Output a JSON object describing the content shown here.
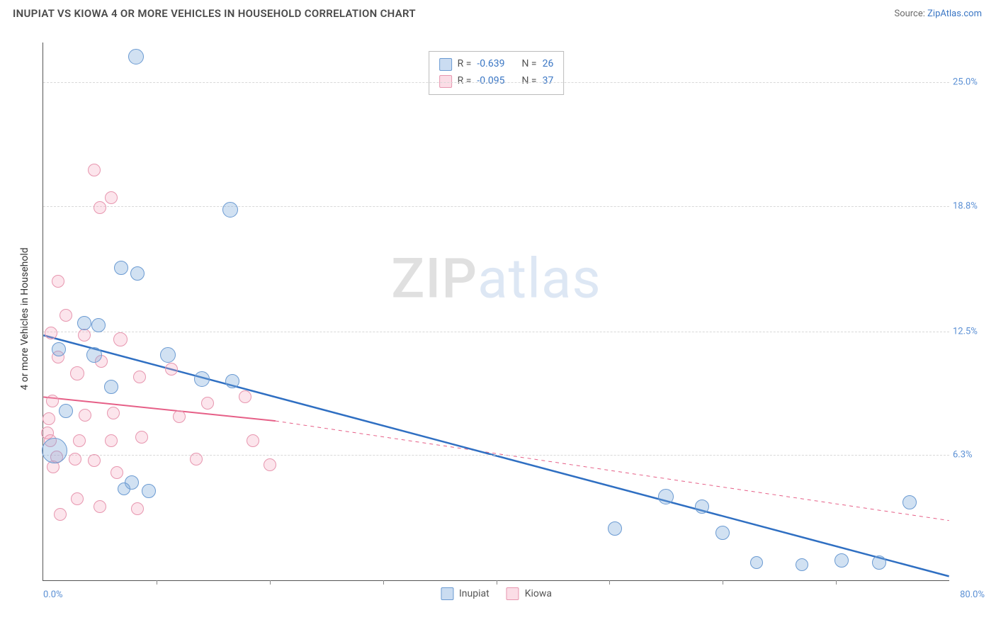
{
  "header": {
    "title": "INUPIAT VS KIOWA 4 OR MORE VEHICLES IN HOUSEHOLD CORRELATION CHART",
    "source_prefix": "Source: ",
    "source_link": "ZipAtlas.com"
  },
  "axes": {
    "y_label": "4 or more Vehicles in Household",
    "x_min": 0,
    "x_max": 80,
    "y_min": 0,
    "y_max": 27,
    "x_min_label": "0.0%",
    "x_max_label": "80.0%",
    "y_ticks": [
      {
        "v": 6.3,
        "label": "6.3%"
      },
      {
        "v": 12.5,
        "label": "12.5%"
      },
      {
        "v": 18.8,
        "label": "18.8%"
      },
      {
        "v": 25.0,
        "label": "25.0%"
      }
    ],
    "x_tick_vals": [
      10,
      20,
      30,
      40,
      50,
      60,
      70
    ]
  },
  "legend_stats": {
    "rows": [
      {
        "swatch": "sw-blue",
        "r_label": "R =",
        "r": "-0.639",
        "n_label": "N =",
        "n": "26"
      },
      {
        "swatch": "sw-pink",
        "r_label": "R =",
        "r": "-0.095",
        "n_label": "N =",
        "n": "37"
      }
    ]
  },
  "bottom_legend": [
    {
      "swatch": "sw-blue",
      "label": "Inupiat"
    },
    {
      "swatch": "sw-pink",
      "label": "Kiowa"
    }
  ],
  "watermark": {
    "zip": "ZIP",
    "atlas": "atlas"
  },
  "points": {
    "blue": [
      {
        "x": 8.2,
        "y": 26.3,
        "r": 11
      },
      {
        "x": 16.5,
        "y": 18.6,
        "r": 11
      },
      {
        "x": 6.9,
        "y": 15.7,
        "r": 10
      },
      {
        "x": 8.3,
        "y": 15.4,
        "r": 10
      },
      {
        "x": 3.6,
        "y": 12.9,
        "r": 10
      },
      {
        "x": 4.9,
        "y": 12.8,
        "r": 10
      },
      {
        "x": 1.4,
        "y": 11.6,
        "r": 10
      },
      {
        "x": 4.5,
        "y": 11.3,
        "r": 11
      },
      {
        "x": 11.0,
        "y": 11.3,
        "r": 11
      },
      {
        "x": 14.0,
        "y": 10.1,
        "r": 11
      },
      {
        "x": 16.7,
        "y": 10.0,
        "r": 10
      },
      {
        "x": 6.0,
        "y": 9.7,
        "r": 10
      },
      {
        "x": 2.0,
        "y": 8.5,
        "r": 10
      },
      {
        "x": 1.0,
        "y": 6.5,
        "r": 18
      },
      {
        "x": 7.8,
        "y": 4.9,
        "r": 10
      },
      {
        "x": 9.3,
        "y": 4.5,
        "r": 10
      },
      {
        "x": 7.1,
        "y": 4.6,
        "r": 9
      },
      {
        "x": 55.0,
        "y": 4.2,
        "r": 11
      },
      {
        "x": 58.2,
        "y": 3.7,
        "r": 10
      },
      {
        "x": 60.0,
        "y": 2.4,
        "r": 10
      },
      {
        "x": 50.5,
        "y": 2.6,
        "r": 10
      },
      {
        "x": 70.5,
        "y": 1.0,
        "r": 10
      },
      {
        "x": 73.8,
        "y": 0.9,
        "r": 10
      },
      {
        "x": 76.5,
        "y": 3.9,
        "r": 10
      },
      {
        "x": 63.0,
        "y": 0.9,
        "r": 9
      },
      {
        "x": 67.0,
        "y": 0.8,
        "r": 9
      }
    ],
    "pink": [
      {
        "x": 4.5,
        "y": 20.6,
        "r": 9
      },
      {
        "x": 6.0,
        "y": 19.2,
        "r": 9
      },
      {
        "x": 5.0,
        "y": 18.7,
        "r": 9
      },
      {
        "x": 1.3,
        "y": 15.0,
        "r": 9
      },
      {
        "x": 2.0,
        "y": 13.3,
        "r": 9
      },
      {
        "x": 0.7,
        "y": 12.4,
        "r": 9
      },
      {
        "x": 3.6,
        "y": 12.3,
        "r": 9
      },
      {
        "x": 6.8,
        "y": 12.1,
        "r": 10
      },
      {
        "x": 1.3,
        "y": 11.2,
        "r": 9
      },
      {
        "x": 5.1,
        "y": 11.0,
        "r": 9
      },
      {
        "x": 3.0,
        "y": 10.4,
        "r": 10
      },
      {
        "x": 8.5,
        "y": 10.2,
        "r": 9
      },
      {
        "x": 11.3,
        "y": 10.6,
        "r": 9
      },
      {
        "x": 0.8,
        "y": 9.0,
        "r": 9
      },
      {
        "x": 0.5,
        "y": 8.1,
        "r": 9
      },
      {
        "x": 3.7,
        "y": 8.3,
        "r": 9
      },
      {
        "x": 6.2,
        "y": 8.4,
        "r": 9
      },
      {
        "x": 14.5,
        "y": 8.9,
        "r": 9
      },
      {
        "x": 17.8,
        "y": 9.2,
        "r": 9
      },
      {
        "x": 12.0,
        "y": 8.2,
        "r": 9
      },
      {
        "x": 0.4,
        "y": 7.4,
        "r": 9
      },
      {
        "x": 0.6,
        "y": 7.0,
        "r": 9
      },
      {
        "x": 3.2,
        "y": 7.0,
        "r": 9
      },
      {
        "x": 6.0,
        "y": 7.0,
        "r": 9
      },
      {
        "x": 8.7,
        "y": 7.2,
        "r": 9
      },
      {
        "x": 18.5,
        "y": 7.0,
        "r": 9
      },
      {
        "x": 1.2,
        "y": 6.2,
        "r": 9
      },
      {
        "x": 2.8,
        "y": 6.1,
        "r": 9
      },
      {
        "x": 4.5,
        "y": 6.0,
        "r": 9
      },
      {
        "x": 6.5,
        "y": 5.4,
        "r": 9
      },
      {
        "x": 13.5,
        "y": 6.1,
        "r": 9
      },
      {
        "x": 20.0,
        "y": 5.8,
        "r": 9
      },
      {
        "x": 0.9,
        "y": 5.7,
        "r": 9
      },
      {
        "x": 3.0,
        "y": 4.1,
        "r": 9
      },
      {
        "x": 5.0,
        "y": 3.7,
        "r": 9
      },
      {
        "x": 8.3,
        "y": 3.6,
        "r": 9
      },
      {
        "x": 1.5,
        "y": 3.3,
        "r": 9
      }
    ]
  },
  "trend_lines": {
    "blue": {
      "solid_x1": 0,
      "solid_y1": 12.3,
      "solid_x2": 80,
      "solid_y2": 0.2,
      "color": "#2f6fc2",
      "width": 2.5
    },
    "pink": {
      "solid_x1": 0,
      "solid_y1": 9.2,
      "solid_x2": 20.5,
      "solid_y2": 8.0,
      "dash_x1": 20.5,
      "dash_y1": 8.0,
      "dash_x2": 80,
      "dash_y2": 3.0,
      "color": "#e65f87",
      "width": 2
    }
  },
  "colors": {
    "blue_fill": "rgba(123,168,219,0.35)",
    "blue_stroke": "#6a9ad2",
    "pink_fill": "rgba(244,170,192,0.30)",
    "pink_stroke": "#e796af",
    "grid": "#d8d8d8",
    "tick_label": "#5a8fd4"
  }
}
